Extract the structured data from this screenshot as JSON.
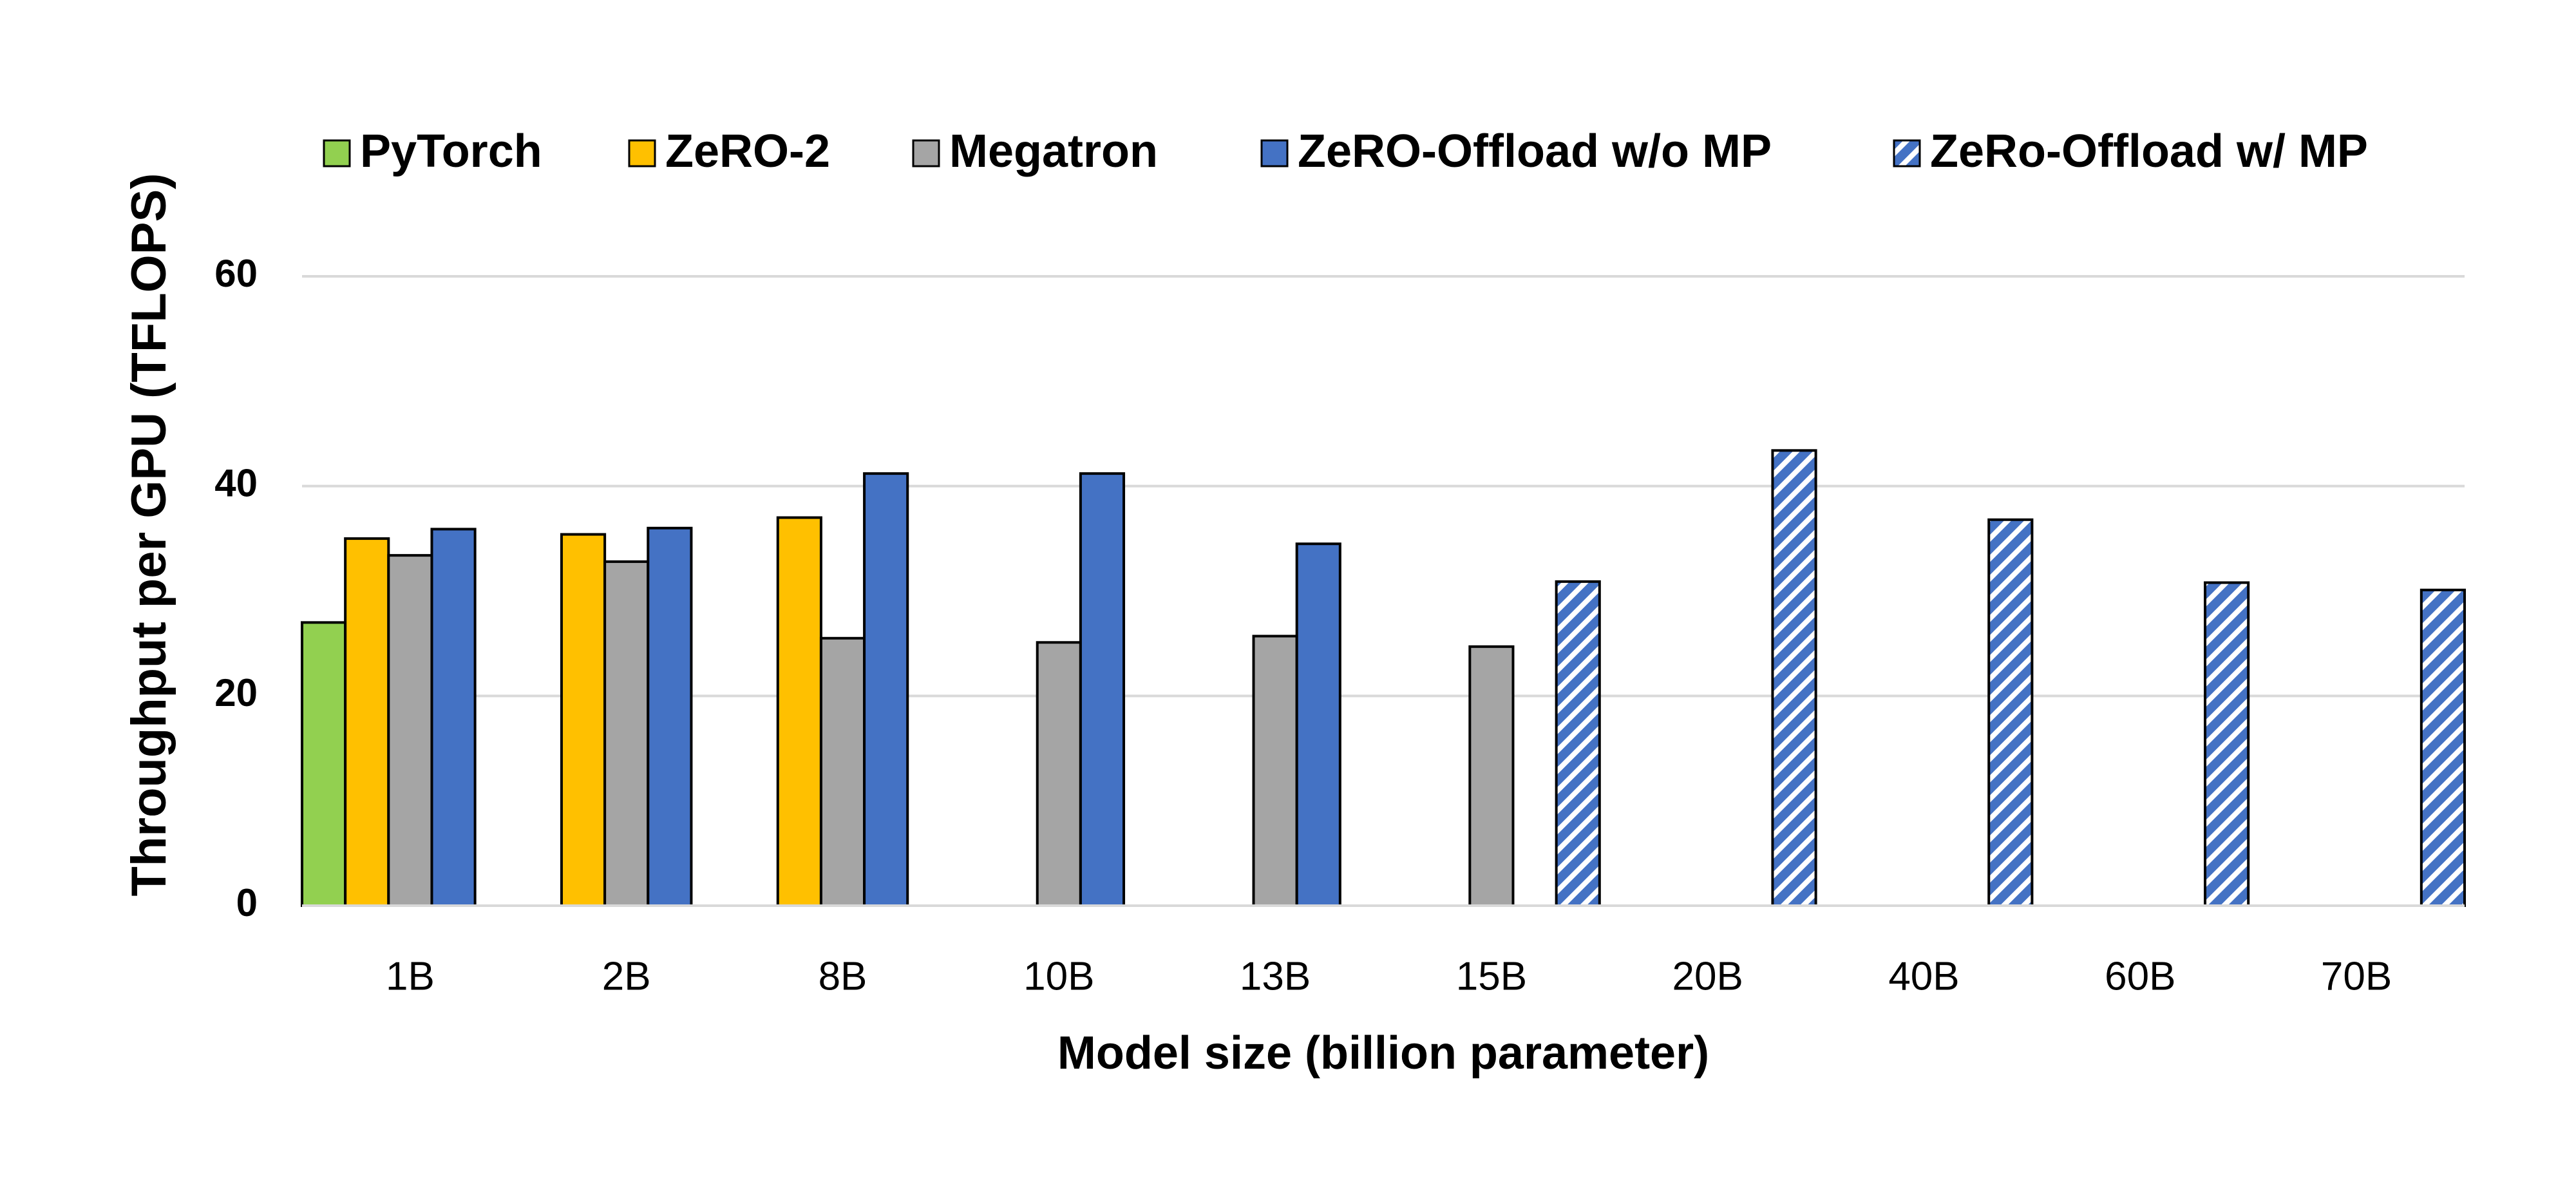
{
  "chart_data": {
    "type": "bar",
    "x_label": "Model size (billion parameter)",
    "y_label": "Throughput per GPU (TFLOPS)",
    "categories": [
      "1B",
      "2B",
      "8B",
      "10B",
      "13B",
      "15B",
      "20B",
      "40B",
      "60B",
      "70B"
    ],
    "series": [
      {
        "name": "PyTorch",
        "color": "#92d050",
        "values": [
          27,
          null,
          null,
          null,
          null,
          null,
          null,
          null,
          null,
          null
        ]
      },
      {
        "name": "ZeRO-2",
        "color": "#ffc000",
        "values": [
          35,
          35.4,
          37,
          null,
          null,
          null,
          null,
          null,
          null,
          null
        ]
      },
      {
        "name": "Megatron",
        "color": "#a5a5a5",
        "values": [
          33.4,
          32.8,
          25.5,
          25.1,
          25.7,
          24.7,
          null,
          null,
          null,
          null
        ]
      },
      {
        "name": "ZeRO-Offload w/o MP",
        "color": "#4472c4",
        "values": [
          35.9,
          36,
          41.2,
          41.2,
          34.5,
          null,
          null,
          null,
          null,
          null
        ]
      },
      {
        "name": "ZeRo-Offload w/ MP",
        "color": "#4472c4",
        "hatched": true,
        "values": [
          null,
          null,
          null,
          null,
          null,
          30.9,
          43.4,
          36.8,
          30.8,
          30.1
        ]
      }
    ],
    "ylim": [
      0,
      60
    ],
    "yticks": [
      0,
      20,
      40,
      60
    ],
    "grid": true,
    "legend": "top"
  }
}
